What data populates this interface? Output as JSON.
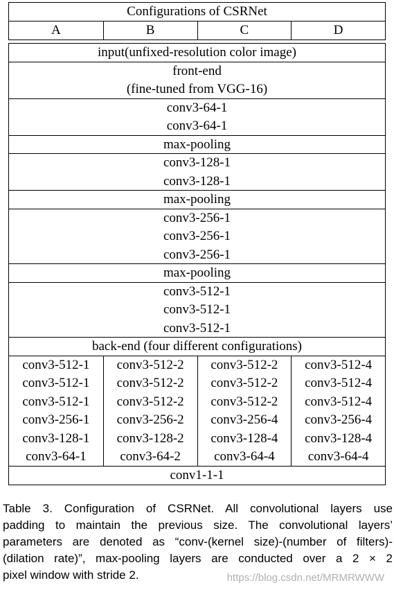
{
  "header": {
    "title": "Configurations of CSRNet",
    "columns": [
      "A",
      "B",
      "C",
      "D"
    ]
  },
  "front_end": {
    "rows": [
      [
        "input(unfixed-resolution color image)"
      ],
      [
        "front-end",
        "(fine-tuned from VGG-16)"
      ],
      [
        "conv3-64-1",
        "conv3-64-1"
      ],
      [
        "max-pooling"
      ],
      [
        "conv3-128-1",
        "conv3-128-1"
      ],
      [
        "max-pooling"
      ],
      [
        "conv3-256-1",
        "conv3-256-1",
        "conv3-256-1"
      ],
      [
        "max-pooling"
      ],
      [
        "conv3-512-1",
        "conv3-512-1",
        "conv3-512-1"
      ]
    ]
  },
  "back_end": {
    "title": "back-end (four different configurations)",
    "columns": [
      [
        "conv3-512-1",
        "conv3-512-1",
        "conv3-512-1",
        "conv3-256-1",
        "conv3-128-1",
        "conv3-64-1"
      ],
      [
        "conv3-512-2",
        "conv3-512-2",
        "conv3-512-2",
        "conv3-256-2",
        "conv3-128-2",
        "conv3-64-2"
      ],
      [
        "conv3-512-2",
        "conv3-512-2",
        "conv3-512-2",
        "conv3-256-4",
        "conv3-128-4",
        "conv3-64-4"
      ],
      [
        "conv3-512-4",
        "conv3-512-4",
        "conv3-512-4",
        "conv3-256-4",
        "conv3-128-4",
        "conv3-64-4"
      ]
    ],
    "output": "conv1-1-1"
  },
  "caption": {
    "lines": [
      "Table 3. Configuration of CSRNet.  All convolutional layers use",
      "padding to maintain the previous size.  The convolutional layers’",
      "parameters are denoted as “conv-(kernel size)-(number of filters)-",
      "(dilation rate)”, max-pooling layers are conducted over a 2 × 2",
      "pixel window with stride 2."
    ]
  },
  "watermark": "https://blog.csdn.net/MRMRWWW"
}
